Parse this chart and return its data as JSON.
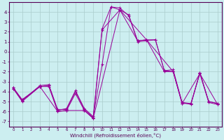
{
  "xlabel": "Windchill (Refroidissement éolien,°C)",
  "background_color": "#cceef0",
  "grid_color": "#aacccc",
  "line_color": "#990099",
  "x_ticks": [
    0,
    1,
    2,
    3,
    4,
    5,
    6,
    7,
    8,
    9,
    10,
    11,
    12,
    13,
    14,
    15,
    16,
    17,
    18,
    19,
    20,
    21,
    22,
    23
  ],
  "y_ticks": [
    -7,
    -6,
    -5,
    -4,
    -3,
    -2,
    -1,
    0,
    1,
    2,
    3,
    4
  ],
  "ylim": [
    -7.5,
    5.0
  ],
  "xlim": [
    -0.5,
    23.5
  ],
  "series": [
    [
      -3.6,
      -4.9,
      null,
      -3.4,
      -3.3,
      -5.8,
      -5.8,
      -4.0,
      -5.8,
      -6.6,
      2.3,
      4.5,
      4.2,
      3.7,
      1.1,
      1.2,
      1.2,
      -1.9,
      -1.8,
      -5.1,
      -5.2,
      -2.1,
      -5.0,
      -5.2
    ],
    [
      -3.6,
      -4.8,
      null,
      -3.5,
      -3.4,
      -5.9,
      -5.7,
      -3.9,
      -5.7,
      -6.5,
      -1.3,
      4.5,
      4.4,
      3.6,
      1.0,
      1.1,
      1.2,
      -1.9,
      -2.0,
      -5.1,
      -5.3,
      -2.1,
      -5.0,
      -5.2
    ],
    [
      -3.7,
      -4.9,
      null,
      -3.5,
      -3.5,
      -6.0,
      -5.9,
      -4.2,
      -5.9,
      -6.7,
      2.2,
      null,
      4.2,
      null,
      1.1,
      1.2,
      null,
      -2.0,
      -2.0,
      -5.2,
      -5.2,
      -2.2,
      -5.1,
      -5.3
    ],
    [
      -3.7,
      -5.0,
      null,
      -3.5,
      null,
      -6.0,
      -5.9,
      null,
      -5.9,
      -6.7,
      null,
      null,
      4.2,
      null,
      null,
      1.2,
      null,
      null,
      -2.0,
      -5.2,
      null,
      -2.2,
      null,
      -5.3
    ]
  ]
}
